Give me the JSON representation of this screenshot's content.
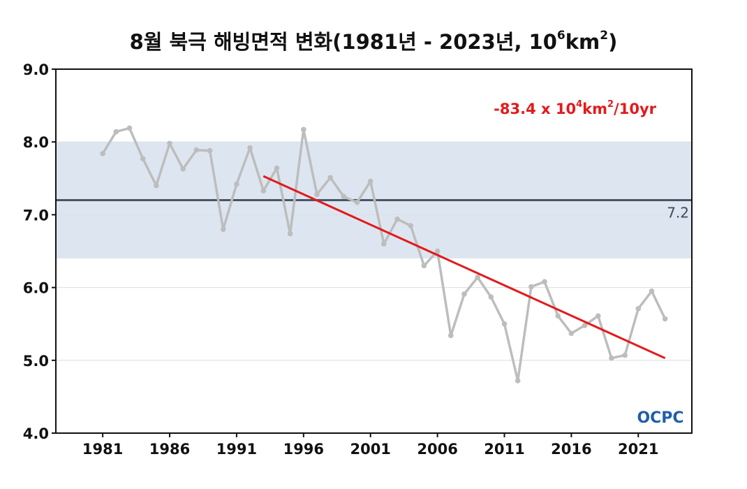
{
  "chart_data": {
    "type": "line",
    "title": {
      "main": "8월 북극 해빙면적 변화(1981년 - 2023년, 10",
      "sup1": "6",
      "mid": "km",
      "sup2": "2",
      "end": ")"
    },
    "xlabel": "",
    "ylabel": "",
    "xlim": [
      1977.5,
      2025
    ],
    "ylim": [
      4.0,
      9.0
    ],
    "x_ticks": [
      "1981",
      "1986",
      "1991",
      "1996",
      "2001",
      "2006",
      "2011",
      "2016",
      "2021"
    ],
    "y_ticks": [
      "4.0",
      "5.0",
      "6.0",
      "7.0",
      "8.0",
      "9.0"
    ],
    "grid": "horizontal",
    "x": [
      1981,
      1982,
      1983,
      1984,
      1985,
      1986,
      1987,
      1988,
      1989,
      1990,
      1991,
      1992,
      1993,
      1994,
      1995,
      1996,
      1997,
      1998,
      1999,
      2000,
      2001,
      2002,
      2003,
      2004,
      2005,
      2006,
      2007,
      2008,
      2009,
      2010,
      2011,
      2012,
      2013,
      2014,
      2015,
      2016,
      2017,
      2018,
      2019,
      2020,
      2021,
      2022,
      2023
    ],
    "series": [
      {
        "values": [
          7.84,
          8.14,
          8.19,
          7.77,
          7.4,
          7.98,
          7.63,
          7.89,
          7.88,
          6.8,
          7.42,
          7.92,
          7.33,
          7.64,
          6.74,
          8.17,
          7.28,
          7.51,
          7.25,
          7.17,
          7.46,
          6.6,
          6.94,
          6.85,
          6.3,
          6.5,
          5.34,
          5.91,
          6.14,
          5.87,
          5.5,
          4.72,
          6.01,
          6.08,
          5.61,
          5.37,
          5.48,
          5.61,
          5.03,
          5.07,
          5.71,
          5.95,
          5.57
        ],
        "color": "#bdbdbd"
      }
    ],
    "mean": {
      "value": 7.2,
      "label": "7.2",
      "color": "#4a5563"
    },
    "normal_band": {
      "low": 6.4,
      "high": 8.0,
      "color": "#dde6f0"
    },
    "trend": {
      "x_start": 1993,
      "y_start": 7.53,
      "x_end": 2023,
      "y_end": 5.03,
      "color": "#e31a1c",
      "label_pre": "-83.4 x 10",
      "label_sup1": "4",
      "label_mid": "km",
      "label_sup2": "2",
      "label_post": "/10yr"
    },
    "logo": {
      "text": "OCPC",
      "color": "#1f5fa8"
    }
  }
}
